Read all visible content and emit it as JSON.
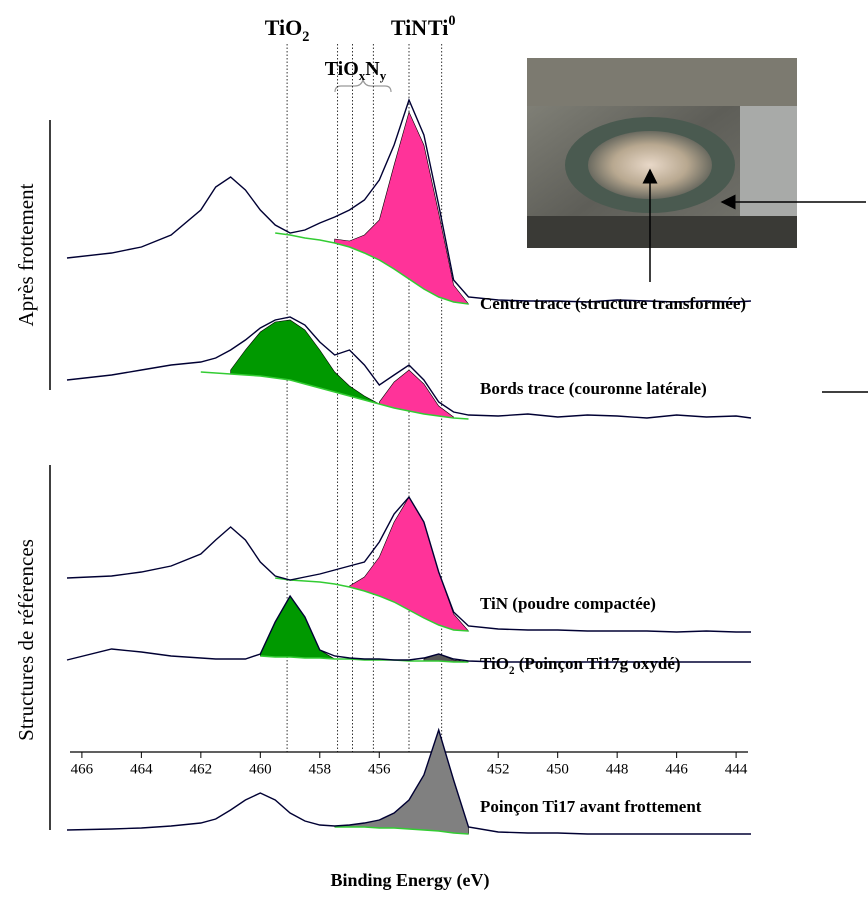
{
  "chart_data": {
    "type": "line",
    "xlabel": "Binding Energy (eV)",
    "xlim": [
      466.4,
      443.6
    ],
    "xticks": [
      466,
      464,
      462,
      460,
      458,
      456,
      454,
      452,
      450,
      448,
      446,
      444
    ],
    "x": [
      466.5,
      465,
      464,
      463,
      462,
      461.5,
      461,
      460.5,
      460,
      459.5,
      459,
      458.5,
      458,
      457.5,
      457,
      456.5,
      456,
      455.5,
      455,
      454.5,
      454,
      453.5,
      453,
      452,
      451,
      450,
      449,
      448,
      447,
      446,
      445,
      444,
      443.5
    ],
    "background_color": "#33cc33",
    "line_color": "#000033",
    "series": [
      {
        "name": [
          "Centre trace (structure transformée)"
        ],
        "values": [
          47,
          52,
          58,
          70,
          95,
          118,
          128,
          115,
          95,
          80,
          72,
          75,
          82,
          88,
          95,
          105,
          125,
          160,
          205,
          170,
          100,
          25,
          8,
          5,
          4,
          4,
          3,
          5,
          4,
          3,
          4,
          3,
          4
        ],
        "background": [
          null,
          null,
          null,
          null,
          null,
          null,
          null,
          null,
          null,
          72,
          70,
          67,
          65,
          62,
          58,
          52,
          45,
          36,
          26,
          16,
          8,
          3,
          1,
          null,
          null,
          null,
          null,
          null,
          null,
          null,
          null,
          null,
          null
        ],
        "fills": [
          {
            "color": "#ff3399",
            "values": [
              null,
              null,
              null,
              null,
              null,
              null,
              null,
              null,
              null,
              null,
              null,
              null,
              null,
              66,
              64,
              70,
              85,
              140,
              193,
              160,
              92,
              20,
              1,
              null,
              null,
              null,
              null,
              null,
              null,
              null,
              null,
              null,
              null
            ]
          }
        ]
      },
      {
        "name": [
          "Bords trace (couronne latérale)"
        ],
        "values": [
          40,
          45,
          50,
          55,
          58,
          62,
          70,
          80,
          92,
          100,
          103,
          95,
          78,
          65,
          70,
          55,
          35,
          45,
          55,
          40,
          18,
          8,
          5,
          4,
          6,
          3,
          5,
          4,
          2,
          5,
          3,
          4,
          2
        ],
        "background": [
          null,
          null,
          null,
          null,
          48,
          47,
          46,
          45,
          44,
          42,
          40,
          36,
          32,
          28,
          24,
          20,
          16,
          12,
          9,
          6,
          4,
          2,
          1,
          null,
          null,
          null,
          null,
          null,
          null,
          null,
          null,
          null,
          null
        ],
        "fills": [
          {
            "color": "#009900",
            "values": [
              null,
              null,
              null,
              null,
              null,
              null,
              50,
              70,
              88,
              98,
              100,
              90,
              70,
              48,
              34,
              24,
              16,
              null,
              null,
              null,
              null,
              null,
              null,
              null,
              null,
              null,
              null,
              null,
              null,
              null,
              null,
              null,
              null
            ]
          },
          {
            "color": "#ff3399",
            "values": [
              null,
              null,
              null,
              null,
              null,
              null,
              null,
              null,
              null,
              null,
              null,
              null,
              null,
              null,
              null,
              null,
              18,
              38,
              50,
              36,
              14,
              3,
              null,
              null,
              null,
              null,
              null,
              null,
              null,
              null,
              null,
              null,
              null
            ]
          }
        ]
      },
      {
        "name": [
          "TiN (poudre compactée)"
        ],
        "values": [
          54,
          56,
          60,
          66,
          78,
          92,
          105,
          92,
          70,
          56,
          52,
          55,
          58,
          62,
          66,
          70,
          90,
          118,
          135,
          110,
          60,
          20,
          6,
          3,
          2,
          2,
          1,
          1,
          1,
          0,
          1,
          0,
          0
        ],
        "background": [
          null,
          null,
          null,
          null,
          null,
          null,
          null,
          null,
          null,
          54,
          52,
          51,
          50,
          48,
          45,
          41,
          36,
          30,
          22,
          14,
          7,
          2,
          1,
          null,
          null,
          null,
          null,
          null,
          null,
          null,
          null,
          null,
          null
        ],
        "fills": [
          {
            "color": "#ff3399",
            "values": [
              null,
              null,
              null,
              null,
              null,
              null,
              null,
              null,
              null,
              null,
              null,
              null,
              null,
              null,
              46,
              55,
              75,
              110,
              135,
              110,
              60,
              18,
              1,
              null,
              null,
              null,
              null,
              null,
              null,
              null,
              null,
              null,
              null
            ]
          }
        ]
      },
      {
        "name": [
          "TiO",
          {
            "sub": "2"
          },
          " (Poinçon Ti17g oxydé)"
        ],
        "values": [
          2,
          13,
          10,
          6,
          4,
          3,
          3,
          3,
          8,
          40,
          66,
          45,
          12,
          6,
          4,
          3,
          3,
          2,
          2,
          4,
          8,
          3,
          1,
          0,
          0,
          0,
          0,
          0,
          0,
          0,
          0,
          0,
          0
        ],
        "background": [
          null,
          null,
          null,
          null,
          null,
          null,
          null,
          null,
          6,
          5,
          5,
          4,
          4,
          3,
          3,
          2,
          2,
          2,
          1,
          1,
          1,
          0,
          0,
          null,
          null,
          null,
          null,
          null,
          null,
          null,
          null,
          null,
          null
        ],
        "fills": [
          {
            "color": "#009900",
            "values": [
              null,
              null,
              null,
              null,
              null,
              null,
              null,
              null,
              8,
              40,
              66,
              45,
              12,
              3,
              null,
              null,
              null,
              null,
              null,
              null,
              null,
              null,
              null,
              null,
              null,
              null,
              null,
              null,
              null,
              null,
              null,
              null,
              null
            ]
          },
          {
            "color": "#555555",
            "values": [
              null,
              null,
              null,
              null,
              null,
              null,
              null,
              null,
              null,
              null,
              null,
              null,
              null,
              null,
              null,
              null,
              null,
              null,
              null,
              3,
              8,
              2,
              0,
              null,
              null,
              null,
              null,
              null,
              null,
              null,
              null,
              null,
              null
            ]
          }
        ]
      },
      {
        "name": [
          "Poinçon Ti17 avant frottement"
        ],
        "values": [
          5,
          6,
          7,
          9,
          12,
          16,
          25,
          35,
          42,
          35,
          22,
          14,
          10,
          9,
          10,
          12,
          15,
          22,
          35,
          60,
          105,
          55,
          8,
          3,
          2,
          2,
          1,
          1,
          1,
          1,
          1,
          1,
          1
        ],
        "background": [
          null,
          null,
          null,
          null,
          null,
          null,
          null,
          null,
          null,
          null,
          null,
          null,
          null,
          8,
          8,
          8,
          7,
          7,
          6,
          5,
          4,
          2,
          1,
          null,
          null,
          null,
          null,
          null,
          null,
          null,
          null,
          null,
          null
        ],
        "fills": [
          {
            "color": "#808080",
            "values": [
              null,
              null,
              null,
              null,
              null,
              null,
              null,
              null,
              null,
              null,
              null,
              null,
              null,
              9,
              10,
              12,
              15,
              22,
              35,
              60,
              105,
              55,
              8,
              null,
              null,
              null,
              null,
              null,
              null,
              null,
              null,
              null,
              null
            ]
          }
        ]
      }
    ],
    "groups": [
      "Après frottement",
      "Structures de références"
    ],
    "reference_lines": [
      459.1,
      457.4,
      456.9,
      456.2,
      455.0,
      453.9
    ],
    "peak_labels": [
      {
        "segments": [
          "TiO",
          {
            "sub": "2"
          }
        ],
        "x": 459.1,
        "color": "#000000"
      },
      {
        "segments": [
          "TiO",
          {
            "sub": "x"
          },
          "N",
          {
            "sub": "y"
          }
        ],
        "x": 456.8,
        "color": "#999999"
      },
      {
        "segments": [
          "TiN"
        ],
        "x": 455.0,
        "color": "#000000"
      },
      {
        "segments": [
          "Ti",
          {
            "sup": "0"
          }
        ],
        "x": 453.9,
        "color": "#000000"
      }
    ]
  }
}
